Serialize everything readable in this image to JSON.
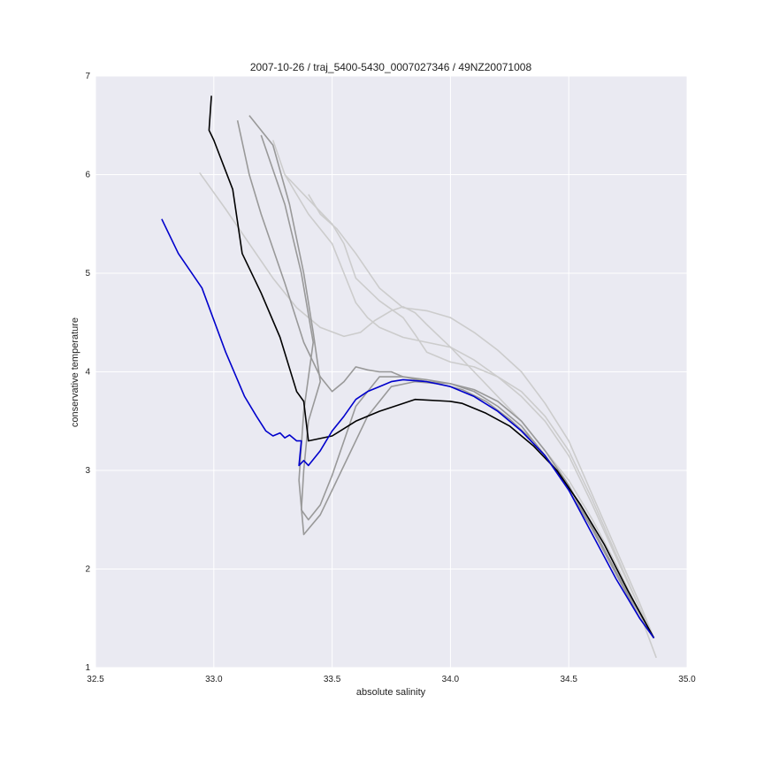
{
  "chart_data": {
    "type": "line",
    "title": "2007-10-26 / traj_5400-5430_0007027346 / 49NZ20071008",
    "xlabel": "absolute salinity",
    "ylabel": "conservative temperature",
    "xlim": [
      32.5,
      35.0
    ],
    "ylim": [
      1,
      7
    ],
    "xticks": [
      "32.5",
      "33.0",
      "33.5",
      "34.0",
      "34.5",
      "35.0"
    ],
    "yticks": [
      "1",
      "2",
      "3",
      "4",
      "5",
      "6",
      "7"
    ],
    "grid": true,
    "legend": "none",
    "colors": {
      "background": "#eaeaf2",
      "grid": "#ffffff",
      "light_gray": "#cccccc",
      "mid_gray": "#999999",
      "black": "#000000",
      "blue": "#0000cc"
    },
    "series": [
      {
        "color": "#cccccc",
        "x": [
          32.94,
          33.05,
          33.15,
          33.25,
          33.35,
          33.45,
          33.55,
          33.62,
          33.68,
          33.75,
          33.8,
          33.85,
          33.9,
          34.0,
          34.1,
          34.2,
          34.3,
          34.4,
          34.5,
          34.6,
          34.7,
          34.8,
          34.87
        ],
        "y": [
          6.02,
          5.65,
          5.3,
          4.95,
          4.65,
          4.45,
          4.36,
          4.4,
          4.52,
          4.62,
          4.66,
          4.6,
          4.48,
          4.25,
          4.0,
          3.75,
          3.5,
          3.2,
          2.9,
          2.5,
          2.05,
          1.55,
          1.1
        ]
      },
      {
        "color": "#cccccc",
        "x": [
          33.4,
          33.45,
          33.52,
          33.6,
          33.7,
          33.8,
          33.9,
          34.0,
          34.1,
          34.2,
          34.3,
          34.4,
          34.5,
          34.6,
          34.7,
          34.8,
          34.86
        ],
        "y": [
          5.8,
          5.6,
          5.45,
          5.2,
          4.85,
          4.65,
          4.62,
          4.55,
          4.4,
          4.22,
          4.0,
          3.68,
          3.3,
          2.75,
          2.2,
          1.65,
          1.3
        ]
      },
      {
        "color": "#cccccc",
        "x": [
          33.25,
          33.3,
          33.4,
          33.5,
          33.55,
          33.6,
          33.7,
          33.8,
          33.85,
          33.9,
          34.0,
          34.1,
          34.2,
          34.3,
          34.4,
          34.5,
          34.6,
          34.7,
          34.8,
          34.86
        ],
        "y": [
          6.35,
          6.0,
          5.75,
          5.5,
          5.3,
          4.95,
          4.72,
          4.55,
          4.38,
          4.2,
          4.1,
          4.05,
          3.95,
          3.8,
          3.55,
          3.2,
          2.7,
          2.15,
          1.6,
          1.3
        ]
      },
      {
        "color": "#cccccc",
        "x": [
          33.3,
          33.4,
          33.5,
          33.55,
          33.6,
          33.65,
          33.7,
          33.8,
          33.9,
          34.0,
          34.1,
          34.2,
          34.3,
          34.4,
          34.5,
          34.6,
          34.7,
          34.8,
          34.86
        ],
        "y": [
          6.0,
          5.6,
          5.3,
          5.0,
          4.7,
          4.55,
          4.45,
          4.35,
          4.3,
          4.25,
          4.12,
          3.95,
          3.75,
          3.5,
          3.15,
          2.65,
          2.12,
          1.6,
          1.3
        ]
      },
      {
        "color": "#999999",
        "x": [
          33.1,
          33.15,
          33.2,
          33.3,
          33.38,
          33.45,
          33.5,
          33.55,
          33.6,
          33.65,
          33.7,
          33.75,
          33.8,
          33.9,
          34.0,
          34.1,
          34.2,
          34.3,
          34.4,
          34.5,
          34.6,
          34.7,
          34.8,
          34.86
        ],
        "y": [
          6.55,
          6.0,
          5.6,
          4.9,
          4.3,
          3.95,
          3.8,
          3.9,
          4.05,
          4.02,
          4.0,
          4.0,
          3.95,
          3.9,
          3.88,
          3.8,
          3.65,
          3.45,
          3.15,
          2.8,
          2.4,
          1.95,
          1.5,
          1.3
        ]
      },
      {
        "color": "#999999",
        "x": [
          33.15,
          33.25,
          33.32,
          33.38,
          33.42,
          33.45,
          33.4,
          33.38,
          33.37,
          33.4,
          33.45,
          33.5,
          33.55,
          33.6,
          33.7,
          33.8,
          33.9,
          34.0,
          34.1,
          34.2,
          34.3,
          34.4,
          34.5,
          34.6,
          34.7,
          34.8,
          34.86
        ],
        "y": [
          6.6,
          6.3,
          5.7,
          5.0,
          4.4,
          3.9,
          3.5,
          3.0,
          2.6,
          2.5,
          2.65,
          2.95,
          3.3,
          3.65,
          3.95,
          3.95,
          3.92,
          3.88,
          3.82,
          3.7,
          3.5,
          3.2,
          2.85,
          2.4,
          1.95,
          1.5,
          1.3
        ]
      },
      {
        "color": "#999999",
        "x": [
          33.2,
          33.3,
          33.37,
          33.42,
          33.38,
          33.36,
          33.38,
          33.45,
          33.55,
          33.65,
          33.75,
          33.85,
          33.95,
          34.05,
          34.15,
          34.25,
          34.35,
          34.45,
          34.55,
          34.65,
          34.75,
          34.86
        ],
        "y": [
          6.4,
          5.7,
          5.0,
          4.3,
          3.6,
          2.9,
          2.35,
          2.55,
          3.05,
          3.55,
          3.85,
          3.9,
          3.88,
          3.82,
          3.7,
          3.52,
          3.3,
          3.0,
          2.65,
          2.2,
          1.75,
          1.3
        ]
      },
      {
        "color": "#000000",
        "x": [
          32.99,
          32.98,
          33.0,
          33.08,
          33.12,
          33.2,
          33.28,
          33.35,
          33.38,
          33.4,
          33.5,
          33.6,
          33.7,
          33.8,
          33.85,
          34.0,
          34.05,
          34.15,
          34.25,
          34.35,
          34.45,
          34.55,
          34.65,
          34.75,
          34.86
        ],
        "y": [
          6.8,
          6.45,
          6.35,
          5.85,
          5.2,
          4.8,
          4.35,
          3.8,
          3.7,
          3.3,
          3.35,
          3.5,
          3.6,
          3.68,
          3.72,
          3.7,
          3.68,
          3.58,
          3.45,
          3.25,
          3.0,
          2.65,
          2.25,
          1.78,
          1.3
        ]
      },
      {
        "color": "#0000cc",
        "x": [
          32.78,
          32.85,
          32.95,
          33.05,
          33.13,
          33.18,
          33.22,
          33.25,
          33.28,
          33.3,
          33.32,
          33.35,
          33.37,
          33.36,
          33.38,
          33.4,
          33.45,
          33.5,
          33.55,
          33.6,
          33.65,
          33.7,
          33.75,
          33.8,
          33.9,
          34.0,
          34.1,
          34.2,
          34.3,
          34.4,
          34.5,
          34.6,
          34.7,
          34.8,
          34.86
        ],
        "y": [
          5.55,
          5.2,
          4.85,
          4.2,
          3.75,
          3.55,
          3.4,
          3.35,
          3.38,
          3.33,
          3.36,
          3.3,
          3.3,
          3.05,
          3.1,
          3.05,
          3.2,
          3.4,
          3.55,
          3.72,
          3.8,
          3.85,
          3.9,
          3.92,
          3.9,
          3.85,
          3.75,
          3.6,
          3.4,
          3.15,
          2.8,
          2.35,
          1.9,
          1.5,
          1.3
        ]
      }
    ]
  }
}
